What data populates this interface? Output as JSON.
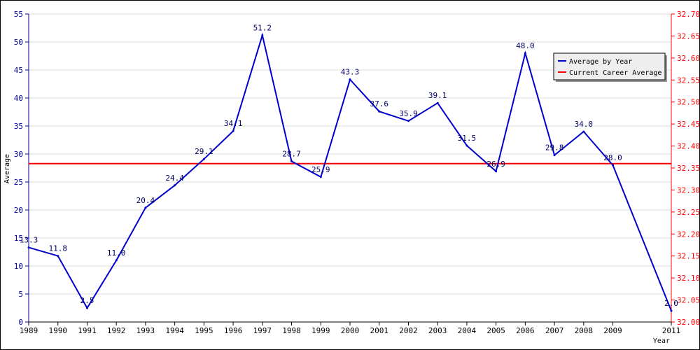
{
  "chart_data": {
    "type": "line",
    "title": "",
    "xlabel": "Year",
    "ylabel": "Average",
    "x": [
      "1989",
      "1990",
      "1991",
      "1992",
      "1993",
      "1994",
      "1995",
      "1996",
      "1997",
      "1998",
      "1999",
      "2000",
      "2001",
      "2002",
      "2003",
      "2004",
      "2005",
      "2006",
      "2007",
      "2008",
      "2009",
      "2011"
    ],
    "series": [
      {
        "name": "Average by Year",
        "color": "#0000cc",
        "axis": "left",
        "values": [
          13.3,
          11.8,
          2.5,
          11.0,
          20.4,
          24.4,
          29.1,
          34.1,
          51.2,
          28.7,
          25.9,
          43.3,
          37.6,
          35.9,
          39.1,
          31.5,
          26.9,
          48.0,
          29.8,
          34.0,
          28.0,
          2.0
        ],
        "labels": [
          "13.3",
          "11.8",
          "2.5",
          "11.0",
          "20.4",
          "24.4",
          "29.1",
          "34.1",
          "51.2",
          "28.7",
          "25.9",
          "43.3",
          "37.6",
          "35.9",
          "39.1",
          "31.5",
          "26.9",
          "48.0",
          "29.8",
          "34.0",
          "28.0",
          "2.0"
        ]
      },
      {
        "name": "Current Career Average",
        "color": "#ff0000",
        "axis": "right",
        "value": 32.36
      }
    ],
    "y_left": {
      "ylim": [
        0,
        55
      ],
      "ticks": [
        "0",
        "5",
        "10",
        "15",
        "20",
        "25",
        "30",
        "35",
        "40",
        "45",
        "50",
        "55"
      ],
      "color": "#000099"
    },
    "y_right": {
      "ylim": [
        32.0,
        32.7
      ],
      "ticks": [
        "32.00",
        "32.05",
        "32.10",
        "32.15",
        "32.20",
        "32.25",
        "32.30",
        "32.35",
        "32.40",
        "32.45",
        "32.50",
        "32.55",
        "32.60",
        "32.65",
        "32.70"
      ],
      "color": "#ff0000"
    },
    "grid": true,
    "legend": "top-right"
  }
}
